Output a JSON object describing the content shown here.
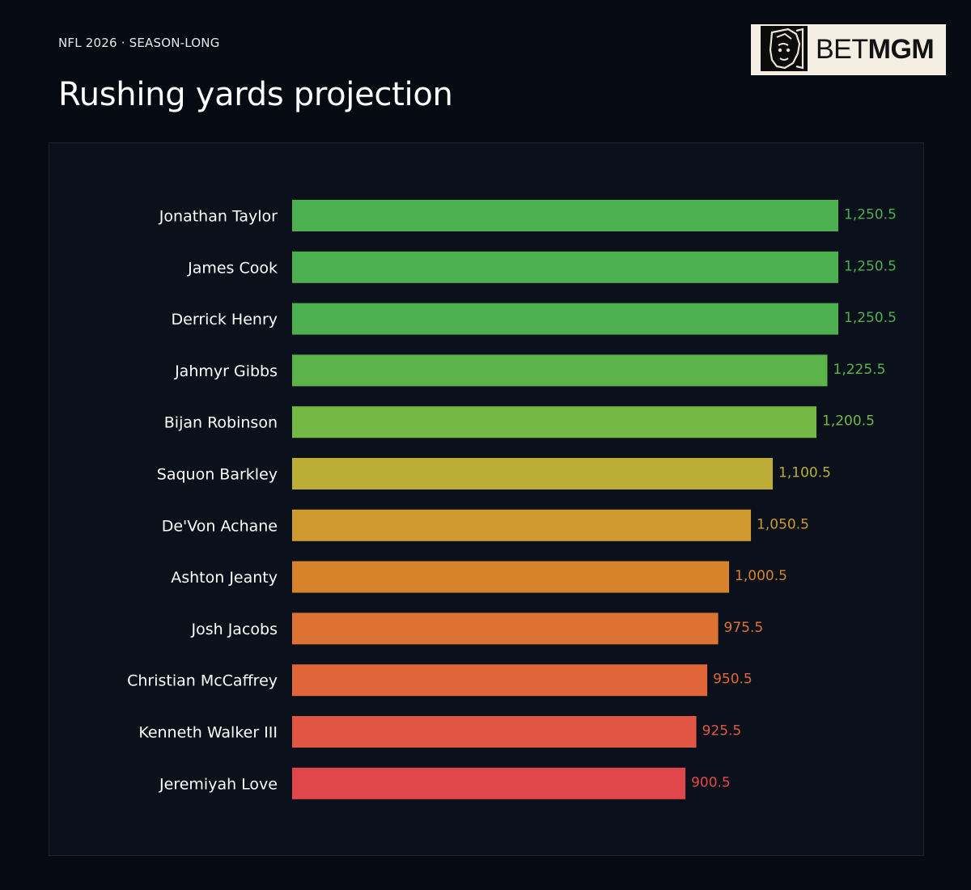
{
  "header": {
    "kicker": "NFL 2026 · SEASON-LONG",
    "title": "Rushing yards projection"
  },
  "logo": {
    "bet": "BET",
    "mgm": "MGM",
    "mark_icon": "lion-head-icon"
  },
  "chart_data": {
    "type": "bar",
    "orientation": "horizontal",
    "title": "Rushing yards projection",
    "xlim": [
      0,
      1250.5
    ],
    "grid": false,
    "legend": "none",
    "categories": [
      "Jonathan Taylor",
      "James Cook",
      "Derrick Henry",
      "Jahmyr Gibbs",
      "Bijan Robinson",
      "Saquon Barkley",
      "De'Von Achane",
      "Ashton Jeanty",
      "Josh Jacobs",
      "Christian McCaffrey",
      "Kenneth Walker III",
      "Jeremiyah Love"
    ],
    "values": [
      1250.5,
      1250.5,
      1250.5,
      1225.5,
      1200.5,
      1100.5,
      1050.5,
      1000.5,
      975.5,
      950.5,
      925.5,
      900.5
    ],
    "value_labels": [
      "1,250.5",
      "1,250.5",
      "1,250.5",
      "1,225.5",
      "1,200.5",
      "1,100.5",
      "1,050.5",
      "1,000.5",
      "975.5",
      "950.5",
      "925.5",
      "900.5"
    ],
    "colors": [
      "#4caf50",
      "#4caf50",
      "#4caf50",
      "#5cb34a",
      "#74b843",
      "#bbad36",
      "#cf9a2f",
      "#d6832c",
      "#dd7333",
      "#e0663a",
      "#e05643",
      "#e1464a"
    ]
  }
}
